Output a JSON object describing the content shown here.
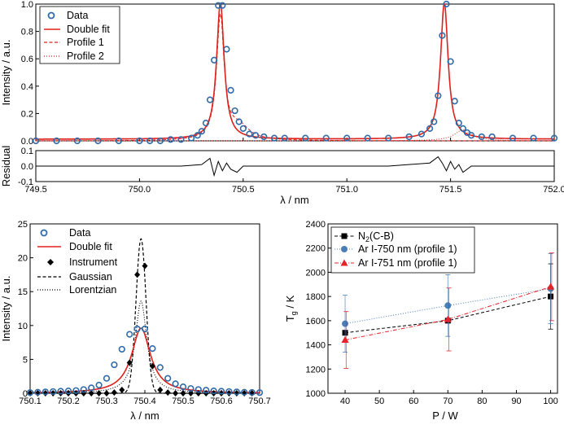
{
  "colors": {
    "data": "#2f6aa8",
    "fit": "#e0201b",
    "black": "#000000",
    "ar750": "#4a7eb8",
    "ar751": "#e8222a"
  },
  "chart_data": [
    {
      "id": "top",
      "type": "line",
      "xlabel": "λ / nm",
      "ylabel": "Intensity / a.u.",
      "xlim": [
        749.5,
        752.0
      ],
      "ylim": [
        0.0,
        1.0
      ],
      "xticks": [
        "749.5",
        "750.0",
        "750.5",
        "751.0",
        "751.5",
        "752.0"
      ],
      "yticks": [
        "0.0",
        "0.2",
        "0.4",
        "0.6",
        "0.8",
        "1.0"
      ],
      "legend": {
        "position": "top-left",
        "entries": [
          "Data",
          "Double fit",
          "Profile 1",
          "Profile 2"
        ]
      },
      "peaks": [
        {
          "center": 750.39,
          "height": 1.0,
          "hwhm": 0.022
        },
        {
          "center": 751.47,
          "height": 1.0,
          "hwhm": 0.022
        }
      ],
      "series": [
        {
          "name": "Data",
          "style": "open-circle",
          "x": [
            749.5,
            749.6,
            749.7,
            749.8,
            749.9,
            750.0,
            750.05,
            750.1,
            750.15,
            750.2,
            750.25,
            750.28,
            750.3,
            750.32,
            750.34,
            750.36,
            750.38,
            750.4,
            750.42,
            750.44,
            750.46,
            750.48,
            750.5,
            750.53,
            750.56,
            750.6,
            750.65,
            750.7,
            750.8,
            750.9,
            751.0,
            751.1,
            751.2,
            751.3,
            751.36,
            751.4,
            751.42,
            751.44,
            751.46,
            751.48,
            751.5,
            751.52,
            751.54,
            751.56,
            751.58,
            751.6,
            751.65,
            751.7,
            751.8,
            751.9,
            752.0
          ],
          "y": [
            0.0,
            0.0,
            0.0,
            0.0,
            0.0,
            0.0,
            0.0,
            0.0,
            0.01,
            0.01,
            0.02,
            0.04,
            0.07,
            0.13,
            0.3,
            0.59,
            0.99,
            0.99,
            0.67,
            0.37,
            0.22,
            0.14,
            0.09,
            0.05,
            0.04,
            0.03,
            0.02,
            0.02,
            0.02,
            0.02,
            0.02,
            0.02,
            0.02,
            0.03,
            0.05,
            0.09,
            0.14,
            0.33,
            0.77,
            1.0,
            0.58,
            0.29,
            0.13,
            0.09,
            0.06,
            0.04,
            0.03,
            0.03,
            0.02,
            0.02,
            0.02
          ]
        },
        {
          "name": "Double fit",
          "style": "solid-red"
        },
        {
          "name": "Profile 1",
          "style": "dashed-red"
        },
        {
          "name": "Profile 2",
          "style": "dotted-red"
        }
      ]
    },
    {
      "id": "residual",
      "type": "line",
      "ylabel": "Residual",
      "xlim": [
        749.5,
        752.0
      ],
      "ylim": [
        -0.1,
        0.1
      ],
      "yticks": [
        "-0.1",
        "0.0",
        "0.1"
      ],
      "x": [
        749.5,
        749.8,
        750.0,
        750.2,
        750.3,
        750.34,
        750.36,
        750.38,
        750.4,
        750.42,
        750.44,
        750.47,
        750.5,
        750.6,
        750.8,
        751.0,
        751.2,
        751.4,
        751.44,
        751.46,
        751.48,
        751.5,
        751.52,
        751.54,
        751.56,
        751.6,
        751.7,
        751.8,
        752.0
      ],
      "y": [
        0.0,
        0.0,
        0.0,
        0.0,
        0.01,
        0.05,
        -0.06,
        0.03,
        -0.03,
        0.02,
        -0.02,
        -0.04,
        0.0,
        0.0,
        0.0,
        0.0,
        0.0,
        0.02,
        0.06,
        0.02,
        -0.03,
        0.03,
        -0.02,
        0.01,
        -0.04,
        0.0,
        0.0,
        0.0,
        0.0
      ]
    },
    {
      "id": "bottom-left",
      "type": "line",
      "xlabel": "λ / nm",
      "ylabel": "Intensity / a.u.",
      "xlim": [
        750.1,
        750.7
      ],
      "ylim": [
        0,
        25
      ],
      "xticks": [
        "750.1",
        "750.2",
        "750.3",
        "750.4",
        "750.5",
        "750.6",
        "750.7"
      ],
      "yticks": [
        "0",
        "5",
        "10",
        "15",
        "20",
        "25"
      ],
      "legend": {
        "position": "top-left",
        "entries": [
          "Data",
          "Double fit",
          "Instrument",
          "Gaussian",
          "Lorentzian"
        ]
      },
      "series": [
        {
          "name": "Data",
          "style": "open-circle",
          "x": [
            750.1,
            750.12,
            750.14,
            750.16,
            750.18,
            750.2,
            750.22,
            750.24,
            750.26,
            750.28,
            750.3,
            750.32,
            750.34,
            750.36,
            750.38,
            750.4,
            750.42,
            750.44,
            750.46,
            750.48,
            750.5,
            750.52,
            750.54,
            750.56,
            750.58,
            750.6,
            750.62,
            750.64,
            750.66,
            750.68,
            750.7
          ],
          "y": [
            0.1,
            0.15,
            0.2,
            0.25,
            0.3,
            0.35,
            0.4,
            0.55,
            0.8,
            1.2,
            2.2,
            4.2,
            6.5,
            8.7,
            9.5,
            9.5,
            6.6,
            3.8,
            2.2,
            1.4,
            0.95,
            0.7,
            0.55,
            0.45,
            0.35,
            0.3,
            0.25,
            0.2,
            0.15,
            0.12,
            0.1
          ]
        },
        {
          "name": "Double fit",
          "style": "solid-red",
          "center": 750.39,
          "height": 9.6,
          "hwhm": 0.03
        },
        {
          "name": "Instrument",
          "style": "diamond",
          "x": [
            750.1,
            750.12,
            750.14,
            750.16,
            750.18,
            750.2,
            750.22,
            750.24,
            750.26,
            750.28,
            750.3,
            750.32,
            750.34,
            750.36,
            750.38,
            750.4,
            750.42,
            750.44,
            750.46,
            750.48,
            750.5,
            750.52,
            750.54,
            750.56,
            750.58,
            750.6,
            750.62,
            750.64,
            750.66,
            750.68
          ],
          "y": [
            0,
            0,
            0,
            0,
            0,
            0,
            0,
            0,
            0,
            0,
            0,
            0.1,
            0.5,
            4.5,
            17.5,
            18.8,
            4.0,
            0.5,
            0.1,
            0,
            0,
            0,
            0,
            0,
            0,
            0,
            0,
            0,
            0,
            0
          ]
        },
        {
          "name": "Gaussian",
          "style": "dashed-black",
          "center": 750.39,
          "height": 22.8,
          "sigma": 0.013
        },
        {
          "name": "Lorentzian",
          "style": "dotted-black",
          "center": 750.39,
          "height": 13.6,
          "hwhm": 0.018
        }
      ]
    },
    {
      "id": "bottom-right",
      "type": "line",
      "xlabel": "P / W",
      "ylabel": "T_g / K",
      "xlim": [
        35,
        102
      ],
      "ylim": [
        1000,
        2400
      ],
      "xticks": [
        "40",
        "50",
        "60",
        "70",
        "80",
        "90",
        "100"
      ],
      "yticks": [
        "1000",
        "1200",
        "1400",
        "1600",
        "1800",
        "2000",
        "2200",
        "2400"
      ],
      "legend": {
        "position": "top-left",
        "entries": [
          "N2(C-B)",
          "Ar I-750 nm (profile 1)",
          "Ar I-751 nm (profile 1)"
        ]
      },
      "series": [
        {
          "name": "N2(C-B)",
          "marker": "square",
          "line": "dashed",
          "x": [
            40,
            70,
            100
          ],
          "y": [
            1500,
            1600,
            1800
          ],
          "err": [
            0,
            0,
            270
          ]
        },
        {
          "name": "Ar I-750 nm (profile 1)",
          "marker": "circle",
          "line": "dotted",
          "x": [
            40,
            70,
            100
          ],
          "y": [
            1575,
            1725,
            1865
          ],
          "err": [
            235,
            255,
            290
          ]
        },
        {
          "name": "Ar I-751 nm (profile 1)",
          "marker": "triangle",
          "line": "dashdot",
          "x": [
            40,
            70,
            100
          ],
          "y": [
            1440,
            1610,
            1880
          ],
          "err": [
            235,
            260,
            280
          ]
        }
      ]
    }
  ]
}
